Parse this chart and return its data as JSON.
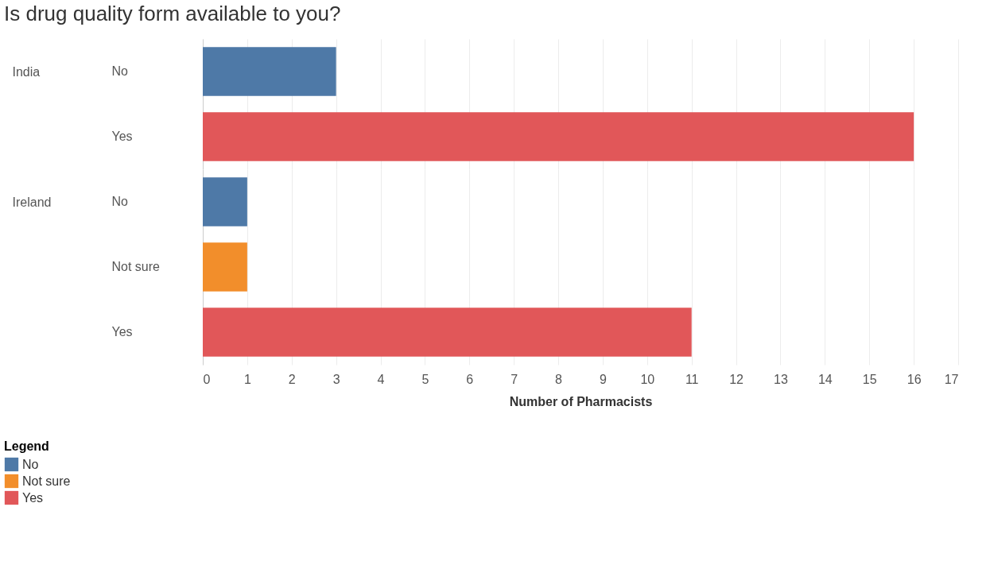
{
  "chart_data": [
    {
      "type": "bar",
      "orientation": "horizontal",
      "title": "Is drug quality form available to you?",
      "ylabel": "India",
      "categories": [
        "No",
        "Yes"
      ],
      "xlim": [
        0,
        17
      ],
      "xticks": [
        0,
        1,
        2,
        3,
        4,
        5,
        6,
        7,
        8,
        9,
        10,
        11,
        12,
        13,
        14,
        15,
        16,
        17
      ],
      "grid": "x",
      "tick_labels": "y",
      "series": [
        {
          "color": "#4e79a7",
          "values": [
            3,
            null
          ]
        },
        {
          "color": "#e15759",
          "values": [
            null,
            16
          ]
        }
      ]
    },
    {
      "type": "bar",
      "orientation": "horizontal",
      "ylabel": "Ireland",
      "xlabel": "Number of Pharmacists",
      "categories": [
        "No",
        "Not sure",
        "Yes"
      ],
      "xlim": [
        0,
        17
      ],
      "xticks": [
        0,
        1,
        2,
        3,
        4,
        5,
        6,
        7,
        8,
        9,
        10,
        11,
        12,
        13,
        14,
        15,
        16,
        17
      ],
      "grid": "x",
      "legend": "bottom left",
      "legend_title": "Legend",
      "series": [
        {
          "name": "No",
          "color": "#4e79a7",
          "values": [
            1,
            null,
            null
          ]
        },
        {
          "name": "Not sure",
          "color": "#f28e2b",
          "values": [
            null,
            1,
            null
          ]
        },
        {
          "name": "Yes",
          "color": "#e15759",
          "values": [
            null,
            null,
            11
          ]
        }
      ]
    }
  ]
}
